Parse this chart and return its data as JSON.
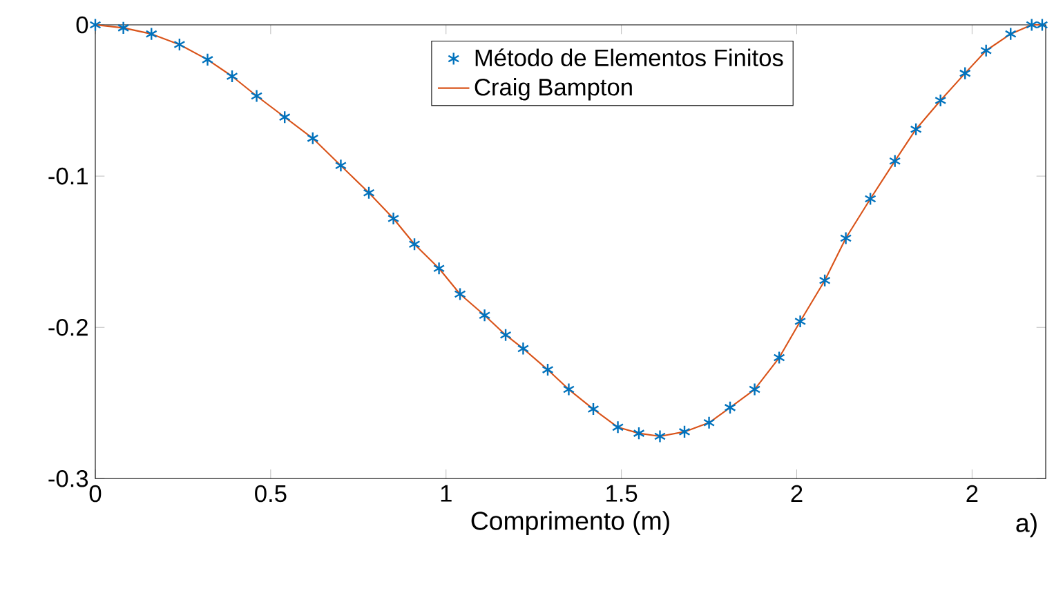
{
  "chart_data": {
    "type": "line",
    "xlabel": "Comprimento (m)",
    "annotations": [
      "a)"
    ],
    "xlim": [
      0,
      2.71
    ],
    "ylim": [
      -0.3,
      0
    ],
    "xticks": [
      0,
      0.5,
      1,
      1.5,
      2,
      {
        "value": 2.5,
        "label": "2"
      }
    ],
    "yticks": [
      -0.3,
      -0.2,
      -0.1,
      0
    ],
    "legend": "top",
    "grid": false,
    "x": [
      0,
      0.08,
      0.16,
      0.24,
      0.32,
      0.39,
      0.46,
      0.54,
      0.62,
      0.7,
      0.78,
      0.85,
      0.91,
      0.98,
      1.04,
      1.11,
      1.17,
      1.22,
      1.29,
      1.35,
      1.42,
      1.49,
      1.55,
      1.61,
      1.68,
      1.75,
      1.81,
      1.88,
      1.95,
      2.01,
      2.08,
      2.14,
      2.21,
      2.28,
      2.34,
      2.41,
      2.48,
      2.54,
      2.61,
      2.67,
      2.7
    ],
    "series": [
      {
        "name": "Método de Elementos Finitos",
        "type": "scatter",
        "marker": "cross",
        "color": "#0072bd",
        "values": [
          0,
          -0.002,
          -0.006,
          -0.013,
          -0.023,
          -0.034,
          -0.047,
          -0.061,
          -0.075,
          -0.093,
          -0.111,
          -0.128,
          -0.145,
          -0.161,
          -0.178,
          -0.192,
          -0.205,
          -0.214,
          -0.228,
          -0.241,
          -0.254,
          -0.266,
          -0.27,
          -0.272,
          -0.269,
          -0.263,
          -0.253,
          -0.241,
          -0.22,
          -0.196,
          -0.169,
          -0.141,
          -0.115,
          -0.09,
          -0.069,
          -0.05,
          -0.032,
          -0.017,
          -0.006,
          0,
          0
        ]
      },
      {
        "name": "Craig Bampton",
        "marker": "none",
        "color": "#d95319",
        "values": [
          0,
          -0.002,
          -0.006,
          -0.013,
          -0.023,
          -0.034,
          -0.047,
          -0.061,
          -0.075,
          -0.093,
          -0.111,
          -0.128,
          -0.145,
          -0.161,
          -0.178,
          -0.192,
          -0.205,
          -0.214,
          -0.228,
          -0.241,
          -0.254,
          -0.266,
          -0.27,
          -0.272,
          -0.269,
          -0.263,
          -0.253,
          -0.241,
          -0.22,
          -0.196,
          -0.169,
          -0.141,
          -0.115,
          -0.09,
          -0.069,
          -0.05,
          -0.032,
          -0.017,
          -0.006,
          0,
          0
        ]
      }
    ]
  }
}
